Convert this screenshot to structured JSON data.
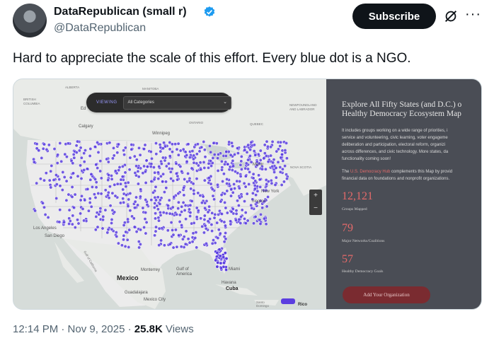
{
  "author": {
    "name": "DataRepublican (small r)",
    "handle": "@DataRepublican",
    "verified_color": "#1d9bf0"
  },
  "actions": {
    "subscribe_label": "Subscribe",
    "grok_icon": "grok-icon",
    "more_label": "···"
  },
  "tweet": {
    "text": "Hard to appreciate the scale of this effort. Every blue dot is a NGO."
  },
  "map_ui": {
    "viewing_label": "VIEWING",
    "category_value": "All Categories",
    "zoom_in": "+",
    "zoom_out": "−",
    "dot_color": "#5b3ee0",
    "labels": {
      "alberta": "ALBERTA",
      "manitoba": "MANITOBA",
      "british_columbia": "BRITISH\nCOLUMBIA",
      "edmonton": "Ed",
      "calgary": "Calgary",
      "winnipeg": "Winnipeg",
      "ontario": "ONTARIO",
      "quebec": "QUEBEC",
      "newfoundland": "NEWFOUNDLAND\nAND LABRADOR",
      "nova_scotia": "NOVA SCOTIA",
      "montreal": "Montr",
      "new_york": "New York",
      "washington": "hington",
      "los_angeles": "Los Angeles",
      "san_diego": "San Diego",
      "gulf_california": "Gulf of California",
      "mexico": "Mexico",
      "monterrey": "Monterrey",
      "gulf_america": "Gulf of\nAmerica",
      "miami": "Miami",
      "havana": "Havana",
      "cuba": "Cuba",
      "guadalajara": "Guadalajara",
      "mexico_city": "Mexico City",
      "santo_domingo": "Santo\nDomingo",
      "puerto_rico": "Rico"
    }
  },
  "panel": {
    "title_line1": "Explore All Fifty States (and D.C.) o",
    "title_line2": "Healthy Democracy Ecosystem Map",
    "desc_lines": [
      "It includes groups working on a wide range of priorities, i",
      "service and volunteering, civic learning, voter engageme",
      "deliberation and participation, electoral reform, organizi",
      "across differences, and civic technology. More states, da",
      "functionality coming soon!"
    ],
    "desc2_prefix": "The ",
    "desc2_link": "U.S. Democracy Hub",
    "desc2_suffix": " complements this Map by provid",
    "desc2_line2": "financial data on foundations and nonprofit organizations.",
    "stats": [
      {
        "value": "12,121",
        "label": "Groups Mapped"
      },
      {
        "value": "79",
        "label": "Major Networks/Coalitions"
      },
      {
        "value": "57",
        "label": "Healthy Democracy Goals"
      }
    ],
    "add_button": "Add Your Organization",
    "accent_color": "#e46a6a"
  },
  "footer": {
    "time": "12:14 PM · Nov 9, 2025 · ",
    "views_count": "25.8K",
    "views_label": " Views"
  }
}
